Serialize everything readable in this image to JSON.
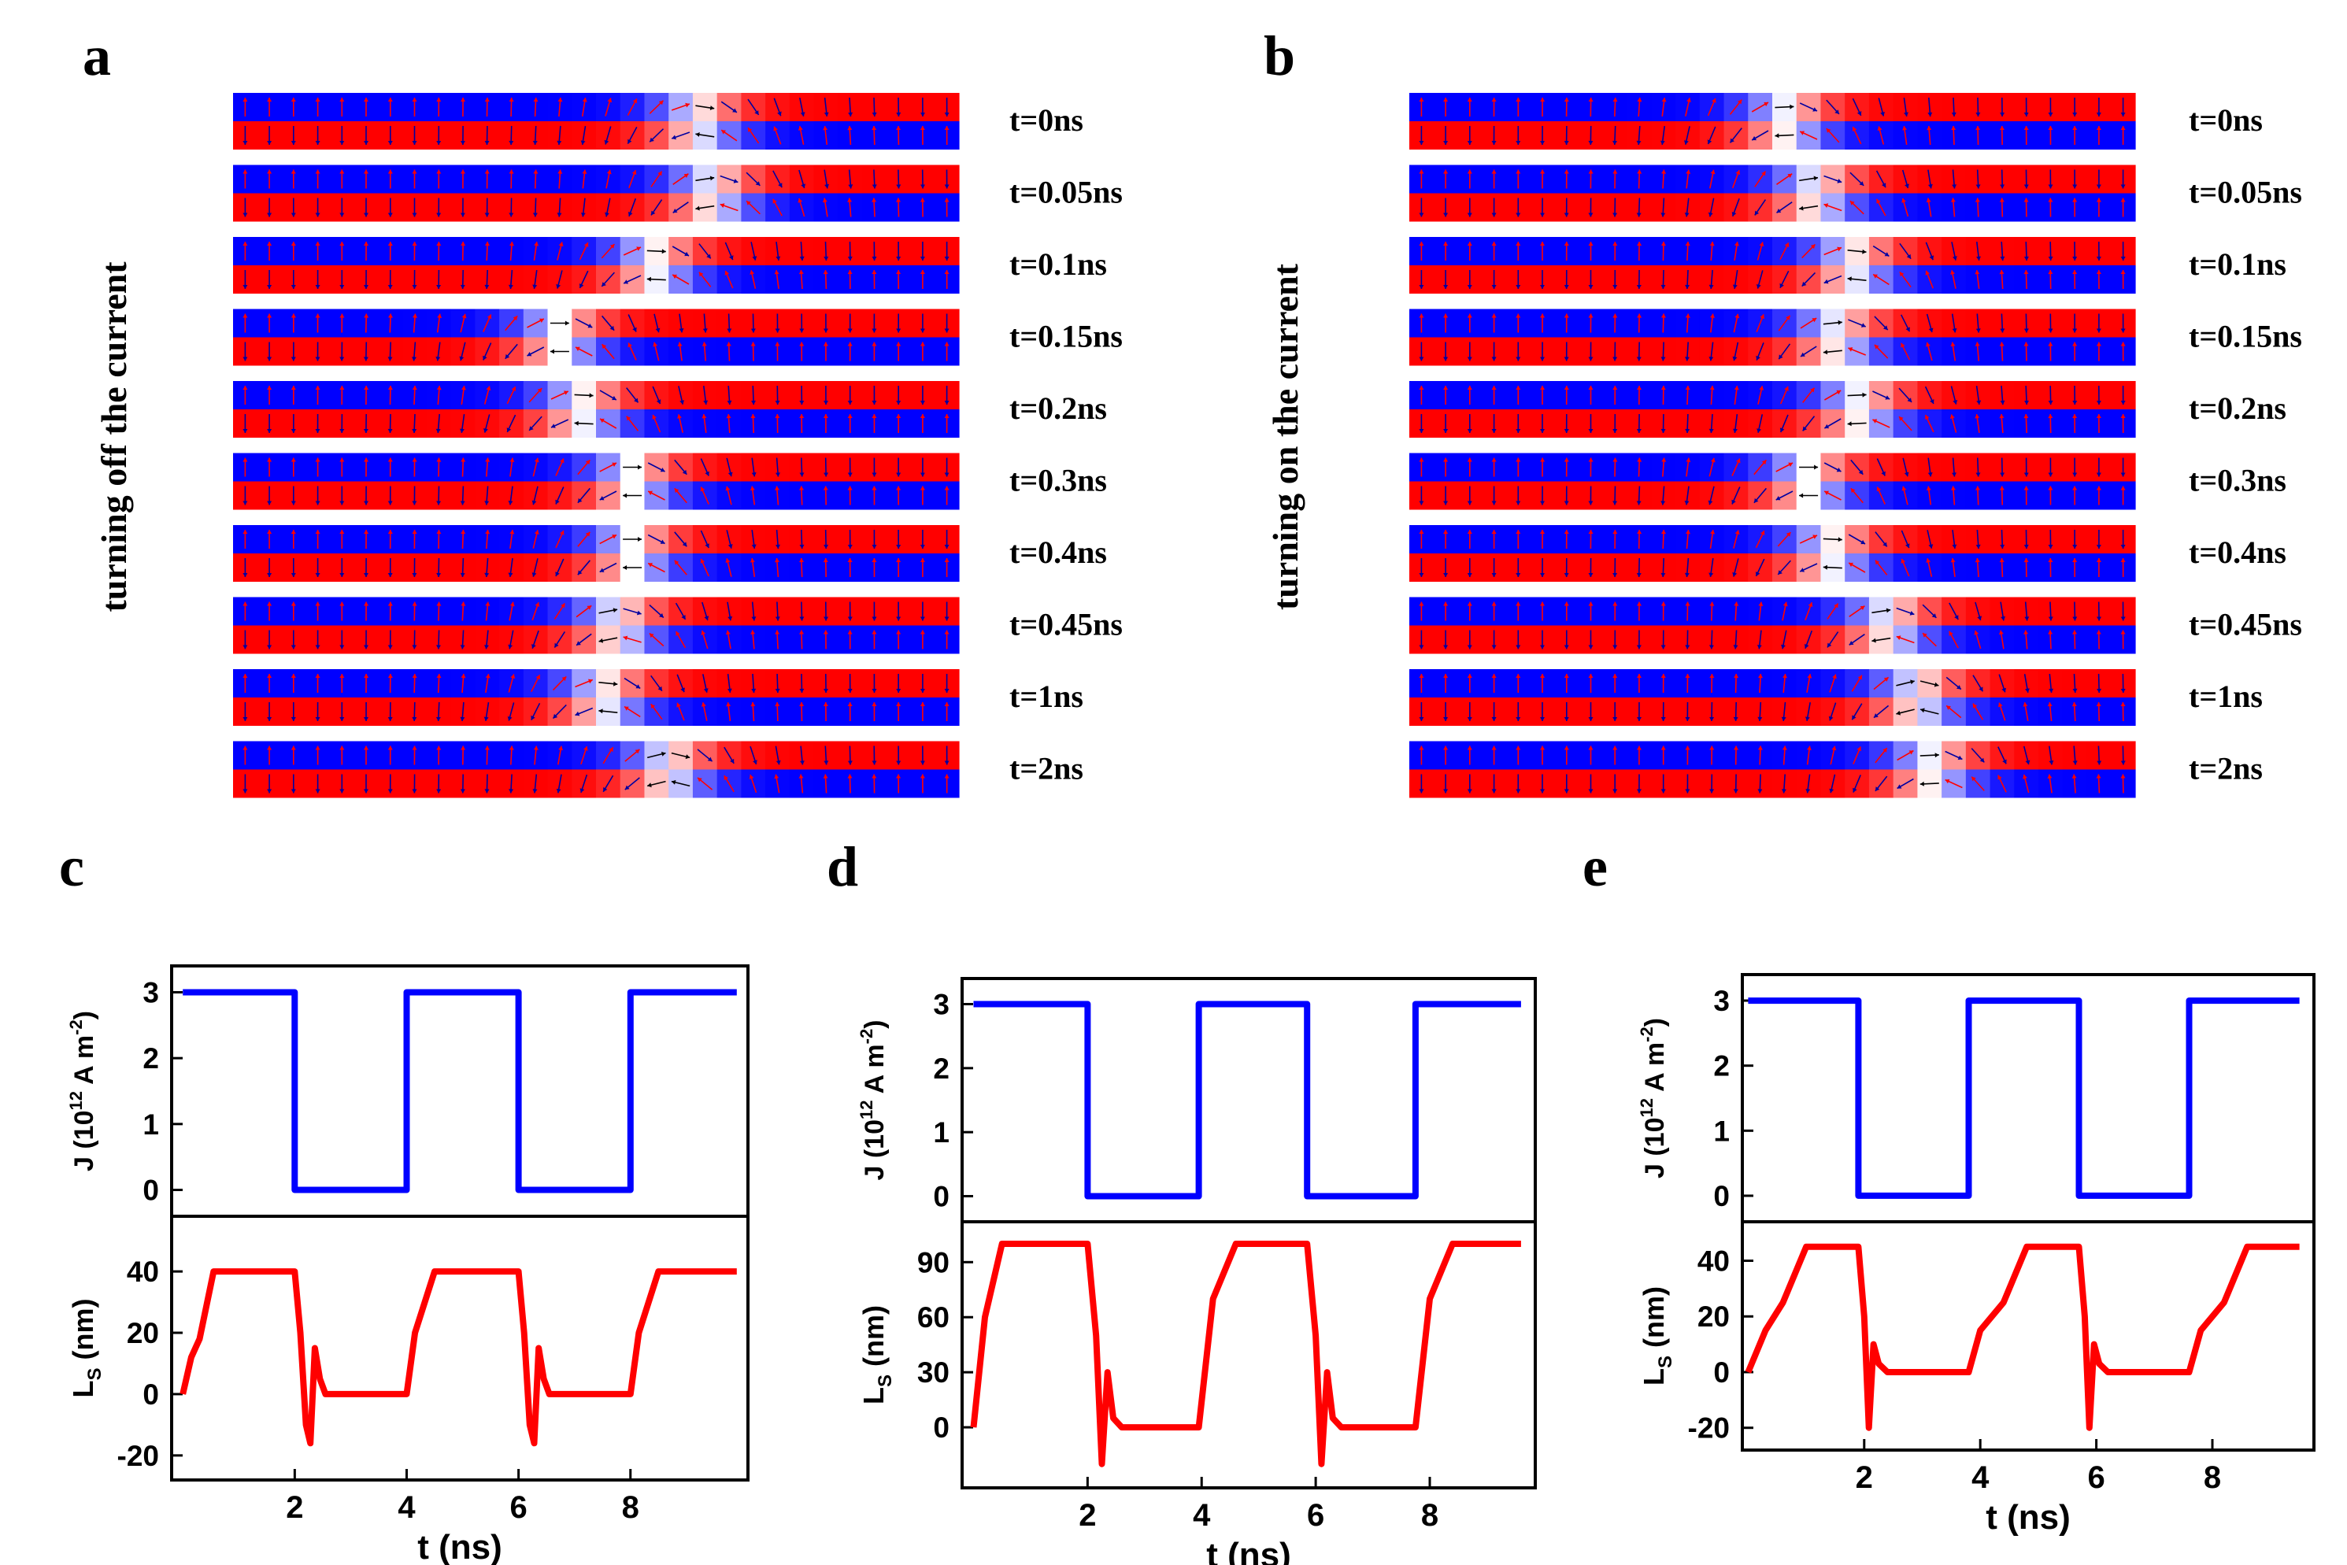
{
  "panels": {
    "a": {
      "letter": "a",
      "side_label": "turning off the current",
      "times": [
        "t=0ns",
        "t=0.05ns",
        "t=0.1ns",
        "t=0.15ns",
        "t=0.2ns",
        "t=0.3ns",
        "t=0.4ns",
        "t=0.45ns",
        "t=1ns",
        "t=2ns"
      ],
      "wall_position": [
        0.64,
        0.66,
        0.58,
        0.45,
        0.48,
        0.55,
        0.55,
        0.53,
        0.51,
        0.6
      ]
    },
    "b": {
      "letter": "b",
      "side_label": "turning on the current",
      "times": [
        "t=0ns",
        "t=0.05ns",
        "t=0.1ns",
        "t=0.15ns",
        "t=0.2ns",
        "t=0.3ns",
        "t=0.4ns",
        "t=0.45ns",
        "t=1ns",
        "t=2ns"
      ],
      "wall_position": [
        0.52,
        0.56,
        0.61,
        0.59,
        0.62,
        0.55,
        0.58,
        0.66,
        0.7,
        0.72
      ]
    },
    "c": {
      "letter": "c"
    },
    "d": {
      "letter": "d"
    },
    "e": {
      "letter": "e"
    }
  },
  "colors": {
    "up": "#0000ff",
    "down": "#ff0000",
    "j_line": "#0000ff",
    "ls_line": "#ff0000",
    "axis": "#000000"
  },
  "chart_data": [
    {
      "id": "c",
      "type": "line",
      "top": {
        "ylabel_main": "J (10",
        "ylabel_sup": "12",
        "ylabel_unit": " A m",
        "ylabel_sup2": "-2",
        "ylabel_close": ")",
        "ylim": [
          -0.4,
          3.4
        ],
        "yticks": [
          0,
          1,
          2,
          3
        ],
        "series": {
          "name": "J",
          "x": [
            0,
            2,
            2,
            4,
            4,
            6,
            6,
            8,
            8,
            9.9
          ],
          "y": [
            3,
            3,
            0,
            0,
            3,
            3,
            0,
            0,
            3,
            3
          ]
        }
      },
      "bottom": {
        "ylabel_main": "L",
        "ylabel_sub": "S",
        "ylabel_unit": " (nm)",
        "ylim": [
          -28,
          58
        ],
        "yticks": [
          -20,
          0,
          20,
          40
        ],
        "series": {
          "name": "LS",
          "x": [
            0,
            0.15,
            0.3,
            0.55,
            2.0,
            2.1,
            2.2,
            2.28,
            2.36,
            2.45,
            2.55,
            4.0,
            4.15,
            4.5,
            6.0,
            6.1,
            6.2,
            6.28,
            6.36,
            6.45,
            6.55,
            8.0,
            8.15,
            8.5,
            9.9
          ],
          "y": [
            0,
            12,
            18,
            40,
            40,
            20,
            -10,
            -16,
            15,
            5,
            0,
            0,
            20,
            40,
            40,
            20,
            -10,
            -16,
            15,
            5,
            0,
            0,
            20,
            40,
            40
          ]
        }
      },
      "xlabel": "t (ns)",
      "xlim": [
        -0.2,
        10.1
      ],
      "xticks": [
        2,
        4,
        6,
        8
      ]
    },
    {
      "id": "d",
      "type": "line",
      "top": {
        "ylabel_main": "J (10",
        "ylabel_sup": "12",
        "ylabel_unit": " A m",
        "ylabel_sup2": "-2",
        "ylabel_close": ")",
        "ylim": [
          -0.4,
          3.4
        ],
        "yticks": [
          0,
          1,
          2,
          3
        ],
        "series": {
          "name": "J",
          "x": [
            0,
            2,
            2,
            3.95,
            3.95,
            5.85,
            5.85,
            7.75,
            7.75,
            9.6
          ],
          "y": [
            3,
            3,
            0,
            0,
            3,
            3,
            0,
            0,
            3,
            3
          ]
        }
      },
      "bottom": {
        "ylabel_main": "L",
        "ylabel_sub": "S",
        "ylabel_unit": " (nm)",
        "ylim": [
          -33,
          112
        ],
        "yticks": [
          0,
          30,
          60,
          90
        ],
        "series": {
          "name": "LS",
          "x": [
            0,
            0.2,
            0.5,
            2.0,
            2.15,
            2.25,
            2.35,
            2.45,
            2.6,
            2.9,
            3.95,
            4.2,
            4.6,
            5.85,
            6.0,
            6.1,
            6.2,
            6.3,
            6.45,
            6.8,
            7.75,
            8.0,
            8.4,
            9.6
          ],
          "y": [
            0,
            60,
            100,
            100,
            50,
            -20,
            30,
            5,
            0,
            0,
            0,
            70,
            100,
            100,
            50,
            -20,
            30,
            5,
            0,
            0,
            0,
            70,
            100,
            100
          ]
        }
      },
      "xlabel": "t (ns)",
      "xlim": [
        -0.2,
        9.85
      ],
      "xticks": [
        2,
        4,
        6,
        8
      ]
    },
    {
      "id": "e",
      "type": "line",
      "top": {
        "ylabel_main": "J (10",
        "ylabel_sup": "12",
        "ylabel_unit": " A m",
        "ylabel_sup2": "-2",
        "ylabel_close": ")",
        "ylim": [
          -0.4,
          3.4
        ],
        "yticks": [
          0,
          1,
          2,
          3
        ],
        "series": {
          "name": "J",
          "x": [
            0,
            1.9,
            1.9,
            3.8,
            3.8,
            5.7,
            5.7,
            7.6,
            7.6,
            9.5
          ],
          "y": [
            3,
            3,
            0,
            0,
            3,
            3,
            0,
            0,
            3,
            3
          ]
        }
      },
      "bottom": {
        "ylabel_main": "L",
        "ylabel_sub": "S",
        "ylabel_unit": " (nm)",
        "ylim": [
          -28,
          54
        ],
        "yticks": [
          -20,
          0,
          20,
          40
        ],
        "series": {
          "name": "LS",
          "x": [
            0,
            0.3,
            0.6,
            1.0,
            1.9,
            2.0,
            2.08,
            2.16,
            2.25,
            2.4,
            2.7,
            3.8,
            4.0,
            4.4,
            4.8,
            5.7,
            5.8,
            5.88,
            5.96,
            6.05,
            6.2,
            6.5,
            7.6,
            7.8,
            8.2,
            8.6,
            9.5
          ],
          "y": [
            0,
            15,
            25,
            45,
            45,
            20,
            -20,
            10,
            3,
            0,
            0,
            0,
            15,
            25,
            45,
            45,
            20,
            -20,
            10,
            3,
            0,
            0,
            0,
            15,
            25,
            45,
            45
          ]
        }
      },
      "xlabel": "t (ns)",
      "xlim": [
        -0.1,
        9.75
      ],
      "xticks": [
        2,
        4,
        6,
        8
      ]
    }
  ]
}
